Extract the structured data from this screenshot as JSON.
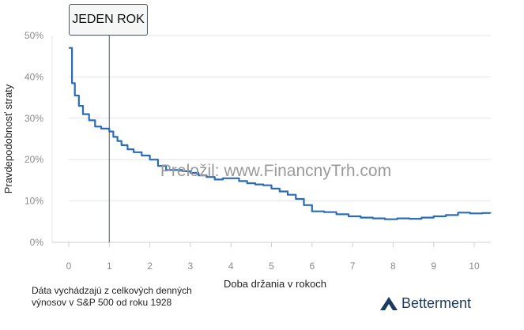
{
  "chart_data": {
    "type": "line",
    "title": "",
    "xlabel": "Doba držania v rokoch",
    "ylabel": "Pravdepodobnosť straty",
    "xlim": [
      0,
      10.4
    ],
    "ylim": [
      0,
      50
    ],
    "x_ticks": [
      "0",
      "1",
      "2",
      "3",
      "4",
      "5",
      "6",
      "7",
      "8",
      "9",
      "10"
    ],
    "y_ticks": [
      "0%",
      "10%",
      "20%",
      "30%",
      "40%",
      "50%"
    ],
    "grid": "horizontal",
    "step": true,
    "line_color": "#2a6bb8",
    "series": [
      {
        "x": [
          0,
          0.08,
          0.15,
          0.25,
          0.35,
          0.5,
          0.65,
          0.8,
          1.0,
          1.1,
          1.2,
          1.3,
          1.45,
          1.6,
          1.8,
          2.0,
          2.2,
          2.4,
          2.6,
          2.8,
          3.0,
          3.2,
          3.4,
          3.6,
          3.8,
          4.0,
          4.2,
          4.4,
          4.6,
          4.8,
          5.0,
          5.2,
          5.4,
          5.6,
          5.8,
          6.0,
          6.3,
          6.6,
          6.9,
          7.2,
          7.5,
          7.8,
          8.1,
          8.4,
          8.7,
          9.0,
          9.3,
          9.6,
          9.9,
          10.2,
          10.4
        ],
        "y": [
          47.0,
          38.5,
          35.5,
          33.0,
          31.0,
          29.5,
          28.0,
          27.5,
          26.8,
          25.5,
          24.5,
          23.5,
          22.5,
          21.8,
          21.0,
          20.0,
          18.5,
          17.5,
          17.5,
          17.2,
          16.8,
          16.2,
          15.8,
          15.2,
          15.5,
          15.5,
          14.8,
          14.3,
          14.0,
          13.8,
          13.0,
          12.3,
          11.5,
          10.5,
          9.0,
          7.5,
          7.3,
          6.8,
          6.3,
          6.0,
          5.8,
          5.6,
          5.8,
          5.7,
          6.0,
          6.3,
          6.6,
          7.2,
          7.0,
          7.1,
          7.0
        ]
      }
    ],
    "annotations": [
      {
        "label": "JEDEN ROK",
        "x": 1
      }
    ]
  },
  "watermark": "Preložil: www.FinancnyTrh.com",
  "footnote": "Dáta vychádzajú z celkových denných výnosov v S&P 500 od roku 1928",
  "brand": {
    "name": "Betterment",
    "color": "#1c3b5f"
  }
}
